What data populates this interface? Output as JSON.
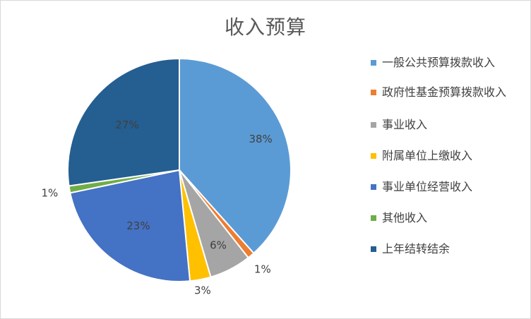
{
  "chart_data": {
    "type": "pie",
    "title": "收入预算",
    "categories": [
      "一般公共预算拨款收入",
      "政府性基金预算拨款收入",
      "事业收入",
      "附属单位上缴收入",
      "事业单位经营收入",
      "其他收入",
      "上年结转结余"
    ],
    "values": [
      38,
      1,
      6,
      3,
      23,
      1,
      27
    ],
    "labels": [
      "38%",
      "1%",
      "6%",
      "3%",
      "23%",
      "1%",
      "27%"
    ],
    "colors": [
      "#5b9bd5",
      "#ed7d31",
      "#a5a5a5",
      "#ffc000",
      "#4472c4",
      "#70ad47",
      "#255e91"
    ],
    "legend_position": "right"
  }
}
